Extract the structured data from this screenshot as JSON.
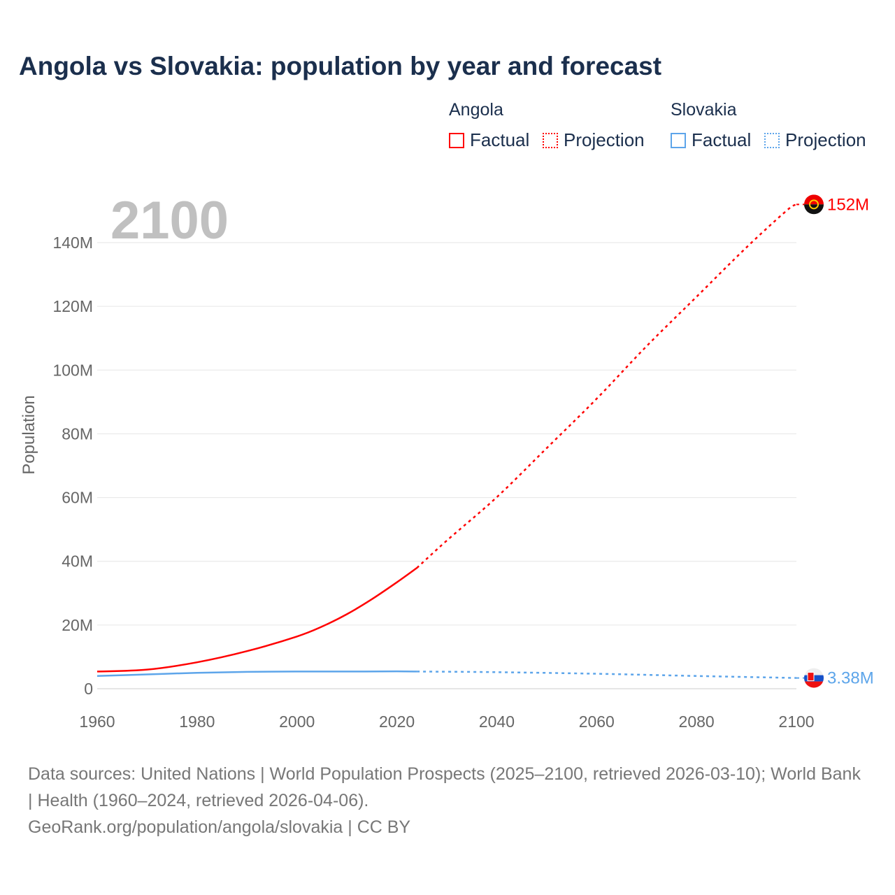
{
  "title": "Angola vs Slovakia: population by year and forecast",
  "legend": {
    "groups": [
      {
        "name": "Angola",
        "color": "#ff0000",
        "items": [
          "Factual",
          "Projection"
        ]
      },
      {
        "name": "Slovakia",
        "color": "#5da5ea",
        "items": [
          "Factual",
          "Projection"
        ]
      }
    ]
  },
  "year_label": "2100",
  "footer": {
    "sources": "Data sources: United Nations | World Population Prospects (2025–2100, retrieved 2026-03-10); World Bank | Health (1960–2024, retrieved 2026-04-06).",
    "credit": "GeoRank.org/population/angola/slovakia | CC BY"
  },
  "chart_data": {
    "type": "line",
    "title": "Angola vs Slovakia: population by year and forecast",
    "xlabel": "",
    "ylabel": "Population",
    "xlim": [
      1960,
      2100
    ],
    "ylim": [
      0,
      140
    ],
    "x_ticks": [
      "1960",
      "1980",
      "2000",
      "2020",
      "2040",
      "2060",
      "2080",
      "2100"
    ],
    "y_ticks": [
      {
        "v": 0,
        "label": "0"
      },
      {
        "v": 20,
        "label": "20M"
      },
      {
        "v": 40,
        "label": "40M"
      },
      {
        "v": 60,
        "label": "60M"
      },
      {
        "v": 80,
        "label": "80M"
      },
      {
        "v": 100,
        "label": "100M"
      },
      {
        "v": 120,
        "label": "120M"
      },
      {
        "v": 140,
        "label": "140M"
      }
    ],
    "grid": true,
    "series": [
      {
        "name": "Angola",
        "color": "#ff0000",
        "end_label": "152M",
        "factual": [
          [
            1960,
            5.4
          ],
          [
            1970,
            6.0
          ],
          [
            1980,
            8.3
          ],
          [
            1990,
            11.8
          ],
          [
            2000,
            16.4
          ],
          [
            2005,
            19.5
          ],
          [
            2010,
            23.4
          ],
          [
            2015,
            28.1
          ],
          [
            2020,
            33.4
          ],
          [
            2024,
            37.9
          ]
        ],
        "projection": [
          [
            2024,
            37.9
          ],
          [
            2030,
            46.5
          ],
          [
            2040,
            60.1
          ],
          [
            2050,
            75.5
          ],
          [
            2060,
            91.0
          ],
          [
            2070,
            107.5
          ],
          [
            2080,
            123.0
          ],
          [
            2090,
            138.5
          ],
          [
            2098,
            150
          ],
          [
            2100,
            152
          ]
        ]
      },
      {
        "name": "Slovakia",
        "color": "#5da5ea",
        "end_label": "3.38M",
        "factual": [
          [
            1960,
            4.0
          ],
          [
            1970,
            4.5
          ],
          [
            1980,
            5.0
          ],
          [
            1990,
            5.3
          ],
          [
            2000,
            5.4
          ],
          [
            2010,
            5.4
          ],
          [
            2020,
            5.45
          ],
          [
            2024,
            5.4
          ]
        ],
        "projection": [
          [
            2024,
            5.4
          ],
          [
            2040,
            5.2
          ],
          [
            2060,
            4.7
          ],
          [
            2080,
            4.0
          ],
          [
            2100,
            3.38
          ]
        ]
      }
    ]
  }
}
